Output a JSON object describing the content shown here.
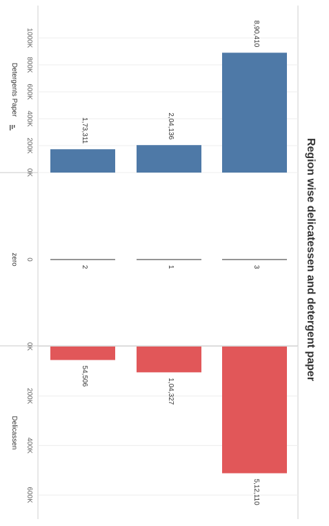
{
  "chart_data": {
    "type": "bar",
    "title": "Region wise delicatessen and detergent paper",
    "categories": [
      "3",
      "1",
      "2"
    ],
    "panels": [
      {
        "name": "Detergents Paper",
        "axis_label": "Detergents Paper",
        "values": [
          890410,
          204136,
          173311
        ],
        "data_labels": [
          "8,90,410",
          "2,04,136",
          "1,73,311"
        ],
        "range": [
          0,
          1000000
        ],
        "ticks": [
          0,
          200000,
          400000,
          600000,
          800000,
          1000000
        ],
        "tick_labels": [
          "0K",
          "200K",
          "400K",
          "600K",
          "800K",
          "1000K"
        ],
        "color": "#4e79a7",
        "sort_icon": "sort-descending-icon"
      },
      {
        "name": "zero",
        "axis_label": "zero",
        "values": [
          0,
          0,
          0
        ],
        "ticks": [
          0
        ],
        "tick_labels": [
          "0"
        ],
        "color": "#555555"
      },
      {
        "name": "Delicassen",
        "axis_label": "Delicassen",
        "values": [
          512110,
          104327,
          54506
        ],
        "data_labels": [
          "5,12,110",
          "1,04,327",
          "54,506"
        ],
        "range": [
          0,
          650000
        ],
        "ticks": [
          0,
          200000,
          400000,
          600000
        ],
        "tick_labels": [
          "0K",
          "200K",
          "400K",
          "600K"
        ],
        "color": "#e15759"
      }
    ],
    "grid": true,
    "legend": "none",
    "orientation": "rotated-90"
  }
}
